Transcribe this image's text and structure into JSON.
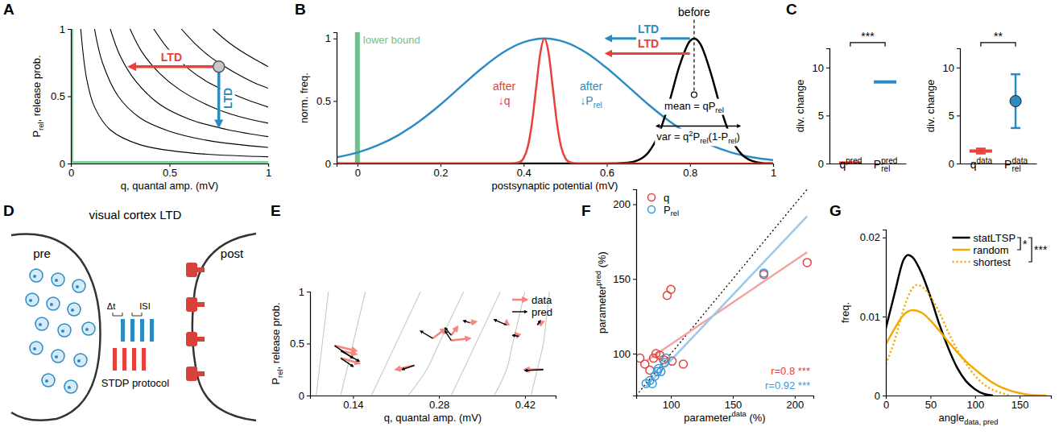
{
  "chart_data": [
    {
      "panel": "A",
      "type": "streamplot",
      "xlabel": "q, quantal amp. (mV)",
      "ylabel": [
        "P",
        {
          "sub": "rel"
        },
        ", release prob."
      ],
      "xlim": [
        0,
        1
      ],
      "ylim": [
        0,
        1
      ],
      "xticks": [
        0,
        0.5,
        1
      ],
      "yticks": [
        0,
        0.5,
        1
      ],
      "streamlines": {
        "color": "#000000",
        "lines": [
          {
            "x": [
              0.05,
              0.08,
              0.12,
              0.2,
              0.35,
              0.6,
              1
            ],
            "y": [
              1,
              0.63,
              0.42,
              0.25,
              0.14,
              0.08,
              0.05
            ]
          },
          {
            "x": [
              0.12,
              0.16,
              0.24,
              0.35,
              0.5,
              0.7,
              1
            ],
            "y": [
              1,
              0.75,
              0.5,
              0.34,
              0.24,
              0.17,
              0.12
            ]
          },
          {
            "x": [
              0.2,
              0.25,
              0.33,
              0.45,
              0.6,
              0.8,
              1
            ],
            "y": [
              1,
              0.8,
              0.61,
              0.44,
              0.33,
              0.25,
              0.2
            ]
          },
          {
            "x": [
              0.3,
              0.36,
              0.45,
              0.55,
              0.7,
              0.85,
              1
            ],
            "y": [
              1,
              0.83,
              0.67,
              0.55,
              0.43,
              0.35,
              0.3
            ]
          },
          {
            "x": [
              0.42,
              0.5,
              0.6,
              0.7,
              0.8,
              0.9,
              1
            ],
            "y": [
              1,
              0.84,
              0.7,
              0.6,
              0.53,
              0.47,
              0.42
            ]
          },
          {
            "x": [
              0.56,
              0.63,
              0.7,
              0.78,
              0.85,
              0.93,
              1
            ],
            "y": [
              1,
              0.89,
              0.8,
              0.72,
              0.66,
              0.6,
              0.56
            ]
          },
          {
            "x": [
              0.72,
              0.8,
              0.88,
              0.95,
              1
            ],
            "y": [
              1,
              0.9,
              0.82,
              0.76,
              0.72
            ]
          }
        ]
      },
      "lower_bound": {
        "x": 0,
        "y": 0,
        "color": "#7fcf9a"
      },
      "point": {
        "x": 0.75,
        "y": 0.72
      },
      "arrows": [
        {
          "label": "LTD",
          "color": "#e8413c",
          "x": [
            0.72,
            0.3
          ],
          "y": [
            0.72,
            0.72
          ]
        },
        {
          "label": "LTD",
          "color": "#2b8cc4",
          "x": [
            0.75,
            0.75
          ],
          "y": [
            0.69,
            0.28
          ]
        }
      ]
    },
    {
      "panel": "B",
      "type": "line",
      "xlabel": "postsynaptic potential (mV)",
      "ylabel": "norm. freq.",
      "xlim": [
        -0.05,
        1
      ],
      "ylim": [
        0,
        1.05
      ],
      "xticks": [
        0,
        0.2,
        0.4,
        0.6,
        0.8,
        1
      ],
      "yticks": [
        0,
        0.5,
        1
      ],
      "series": [
        {
          "name": "after",
          "note": [
            "↓P",
            {
              "sub": "rel"
            }
          ],
          "color": "#2b8cc4",
          "x": [
            -0.05,
            0,
            0.05,
            0.1,
            0.15,
            0.2,
            0.25,
            0.3,
            0.35,
            0.4,
            0.45,
            0.5,
            0.55,
            0.6,
            0.65,
            0.7,
            0.75,
            0.8,
            0.85,
            0.9,
            0.95,
            1
          ],
          "values": [
            0.05,
            0.088,
            0.147,
            0.23,
            0.34,
            0.472,
            0.619,
            0.763,
            0.887,
            0.97,
            1,
            0.97,
            0.887,
            0.763,
            0.619,
            0.472,
            0.34,
            0.23,
            0.147,
            0.088,
            0.05,
            0.027
          ]
        },
        {
          "name": "before",
          "color": "#000000",
          "x": [
            -0.05,
            0.6,
            0.65,
            0.675,
            0.7,
            0.725,
            0.75,
            0.775,
            0.8,
            0.81,
            0.825,
            0.85,
            0.875,
            0.9,
            0.925,
            0.95,
            0.975,
            1
          ],
          "values": [
            0,
            0,
            0.006,
            0.026,
            0.089,
            0.236,
            0.487,
            0.783,
            0.98,
            1,
            0.956,
            0.726,
            0.43,
            0.198,
            0.071,
            0.02,
            0.004,
            0.001
          ]
        },
        {
          "name": "after",
          "note": [
            "↓q"
          ],
          "color": "#e8413c",
          "x": [
            -0.05,
            0.37,
            0.39,
            0.4,
            0.41,
            0.42,
            0.43,
            0.44,
            0.45,
            0.46,
            0.47,
            0.48,
            0.49,
            0.5,
            0.51,
            0.53,
            1
          ],
          "values": [
            0,
            0,
            0.011,
            0.044,
            0.135,
            0.325,
            0.607,
            0.882,
            1,
            0.882,
            0.607,
            0.325,
            0.135,
            0.044,
            0.011,
            0,
            0
          ]
        }
      ],
      "lower_bound": {
        "x": 0,
        "label": "lower bound",
        "color": "#6cc48b"
      },
      "mean": {
        "x": 0.81,
        "y": 0.55,
        "label": [
          "mean = qP",
          {
            "sub": "rel"
          }
        ]
      },
      "variance": {
        "x": [
          0.72,
          0.92
        ],
        "y": 0.3,
        "label": [
          "var = q",
          {
            "sup": "2"
          },
          "P",
          {
            "sub": "rel"
          },
          "(1-P",
          {
            "sub": "rel"
          },
          ")"
        ]
      },
      "arrows": [
        {
          "label": "LTD",
          "color": "#2b8cc4",
          "x": [
            0.8,
            0.6
          ],
          "y": [
            1.0,
            1.0
          ]
        },
        {
          "label": "LTD",
          "color": "#e8413c",
          "x": [
            0.8,
            0.6
          ],
          "y": [
            0.88,
            0.88
          ]
        }
      ]
    },
    {
      "panel": "C",
      "type": "dot",
      "ylabel": "div. change",
      "categories": [
        [
          "q",
          {
            "sup": "pred"
          }
        ],
        [
          "P",
          {
            "sup": "pred"
          },
          {
            "sub": "rel"
          }
        ]
      ],
      "ylim": [
        0,
        12
      ],
      "yticks": [
        0,
        5,
        10
      ],
      "series": [
        {
          "color": "#e8413c",
          "marker": "line",
          "values": [
            0.05,
            null
          ]
        },
        {
          "color": "#2b8cc4",
          "marker": "line",
          "values": [
            null,
            8.5
          ]
        }
      ],
      "significance": {
        "label": "***",
        "y": 12.6
      }
    },
    {
      "type": "dot",
      "ylabel": "div. change",
      "categories": [
        [
          "q",
          {
            "sup": "data"
          }
        ],
        [
          "P",
          {
            "sup": "data"
          },
          {
            "sub": "rel"
          }
        ]
      ],
      "ylim": [
        0,
        12
      ],
      "yticks": [
        0,
        5,
        10
      ],
      "series": [
        {
          "color": "#e8413c",
          "marker": "line",
          "values": [
            1.3,
            null
          ],
          "errors": [
            0.25,
            null
          ]
        },
        {
          "color": "#2b8cc4",
          "marker": "circle",
          "values": [
            null,
            6.5
          ],
          "errors": [
            null,
            2.8
          ]
        }
      ],
      "significance": {
        "label": "**",
        "y": 12.6
      }
    },
    {
      "panel": "E",
      "type": "quiver",
      "xlabel": "q, quantal amp. (mV)",
      "ylabel": [
        "P",
        {
          "sub": "rel"
        },
        ", release prob."
      ],
      "xlim": [
        0.07,
        0.47
      ],
      "ylim": [
        0,
        1
      ],
      "xticks": [
        0.14,
        0.28,
        0.42
      ],
      "yticks": [
        0,
        0.5,
        1
      ],
      "legend": "top-right",
      "streamlines": {
        "color": "#c8c8c8",
        "lines": [
          {
            "x": [
              0.08,
              0.085,
              0.09,
              0.095,
              0.1
            ],
            "y": [
              0,
              0.25,
              0.5,
              0.75,
              1
            ]
          },
          {
            "x": [
              0.12,
              0.13,
              0.14,
              0.15,
              0.16
            ],
            "y": [
              0,
              0.25,
              0.5,
              0.75,
              1
            ]
          },
          {
            "x": [
              0.17,
              0.19,
              0.21,
              0.23,
              0.25
            ],
            "y": [
              0,
              0.25,
              0.5,
              0.75,
              1
            ]
          },
          {
            "x": [
              0.23,
              0.26,
              0.28,
              0.3,
              0.32
            ],
            "y": [
              0,
              0.25,
              0.5,
              0.75,
              1
            ]
          },
          {
            "x": [
              0.3,
              0.32,
              0.34,
              0.36,
              0.38
            ],
            "y": [
              0,
              0.25,
              0.5,
              0.75,
              1
            ]
          },
          {
            "x": [
              0.37,
              0.39,
              0.4,
              0.41,
              0.42
            ],
            "y": [
              0,
              0.25,
              0.5,
              0.75,
              1
            ]
          },
          {
            "x": [
              0.43,
              0.44,
              0.45,
              0.455,
              0.46
            ],
            "y": [
              0,
              0.25,
              0.5,
              0.75,
              1
            ]
          }
        ]
      },
      "series": [
        {
          "name": "data",
          "color": "#f4877f",
          "x0": [
            0.11,
            0.12,
            0.12,
            0.27,
            0.3,
            0.3,
            0.33,
            0.24,
            0.39,
            0.41,
            0.44,
            0.45
          ],
          "y0": [
            0.48,
            0.43,
            0.36,
            0.55,
            0.58,
            0.53,
            0.7,
            0.29,
            0.68,
            0.57,
            0.68,
            0.25
          ],
          "x": [
            0.145,
            0.145,
            0.15,
            0.29,
            0.31,
            0.33,
            0.34,
            0.21,
            0.39,
            0.405,
            0.45,
            0.42
          ],
          "values": [
            0.43,
            0.4,
            0.31,
            0.64,
            0.66,
            0.55,
            0.71,
            0.25,
            0.72,
            0.6,
            0.71,
            0.25
          ]
        },
        {
          "name": "pred",
          "color": "#000000",
          "x0": [
            0.11,
            0.12,
            0.12,
            0.27,
            0.3,
            0.3,
            0.33,
            0.24,
            0.39,
            0.41,
            0.44,
            0.45
          ],
          "y0": [
            0.48,
            0.43,
            0.36,
            0.55,
            0.58,
            0.53,
            0.7,
            0.29,
            0.68,
            0.57,
            0.68,
            0.25
          ],
          "x": [
            0.14,
            0.15,
            0.14,
            0.25,
            0.29,
            0.29,
            0.32,
            0.22,
            0.37,
            0.4,
            0.445,
            0.42
          ],
          "values": [
            0.36,
            0.33,
            0.28,
            0.62,
            0.65,
            0.62,
            0.72,
            0.25,
            0.73,
            0.58,
            0.72,
            0.24
          ]
        }
      ]
    },
    {
      "panel": "F",
      "type": "scatter",
      "xlabel": [
        "parameter",
        {
          "sup": "data"
        },
        " (%)"
      ],
      "ylabel": [
        "parameter",
        {
          "sup": "pred"
        },
        " (%)"
      ],
      "xlim": [
        72,
        215
      ],
      "ylim": [
        72,
        210
      ],
      "xticks": [
        100,
        150,
        200
      ],
      "yticks": [
        100,
        150,
        200
      ],
      "legend": "top-left",
      "identity": {
        "x": [
          72,
          210
        ],
        "y": [
          72,
          210
        ],
        "line_style": "dotted"
      },
      "series": [
        {
          "name": "q",
          "color": "#e8413c",
          "marker": "circle",
          "x": [
            75,
            79,
            83,
            86,
            88,
            91,
            94,
            97,
            100,
            101,
            110,
            175,
            210
          ],
          "values": [
            97,
            93,
            89,
            97,
            100,
            99,
            96,
            139,
            143,
            95,
            93,
            153,
            161
          ],
          "fit": {
            "x": [
              80,
              210
            ],
            "values": [
              95,
              168
            ],
            "color": "#f4a3a0"
          },
          "annotation": "r=0.8 ***"
        },
        {
          "name": [
            "P",
            {
              "sub": "rel"
            }
          ],
          "color": "#3a9ad9",
          "marker": "circle",
          "x": [
            80,
            83,
            85,
            87,
            89,
            90,
            92,
            95,
            96,
            175
          ],
          "values": [
            80,
            82,
            80,
            85,
            88,
            90,
            88,
            94,
            97,
            154
          ],
          "fit": {
            "x": [
              80,
              210
            ],
            "values": [
              78,
              192
            ],
            "color": "#9cc9e8"
          },
          "annotation": "r=0.92 ***"
        }
      ]
    },
    {
      "panel": "G",
      "type": "line",
      "xlabel": [
        "angle",
        {
          "sub": "data, pred"
        }
      ],
      "ylabel": "freq.",
      "xlim": [
        0,
        185
      ],
      "ylim": [
        0,
        0.021
      ],
      "xticks": [
        0,
        50,
        100,
        150
      ],
      "yticks": [
        0,
        0.01,
        0.02
      ],
      "legend": "top-right",
      "series": [
        {
          "name": "statLTSP",
          "color": "#000000",
          "line_style": "solid",
          "x": [
            0,
            10,
            20,
            25,
            30,
            40,
            50,
            60,
            70,
            80,
            90,
            100,
            110,
            120
          ],
          "values": [
            0.0085,
            0.013,
            0.0172,
            0.0178,
            0.0175,
            0.0155,
            0.0125,
            0.009,
            0.006,
            0.0035,
            0.0018,
            0.0008,
            0.0002,
            0
          ]
        },
        {
          "name": "random",
          "color": "#f2a900",
          "line_style": "solid",
          "x": [
            0,
            10,
            20,
            30,
            40,
            50,
            60,
            70,
            80,
            90,
            100,
            110,
            120,
            130,
            140,
            150,
            160,
            180
          ],
          "values": [
            0.0065,
            0.0085,
            0.0102,
            0.0108,
            0.0105,
            0.0095,
            0.0082,
            0.0068,
            0.0055,
            0.0043,
            0.0033,
            0.0024,
            0.0016,
            0.001,
            0.0006,
            0.0003,
            0.0001,
            0
          ]
        },
        {
          "name": "shortest",
          "color": "#f2a900",
          "line_style": "dotted",
          "x": [
            0,
            10,
            20,
            30,
            35,
            40,
            50,
            60,
            70,
            80,
            90,
            100,
            110,
            120,
            130,
            140
          ],
          "values": [
            0.004,
            0.007,
            0.011,
            0.0136,
            0.014,
            0.0138,
            0.0125,
            0.0105,
            0.008,
            0.0058,
            0.004,
            0.0025,
            0.0014,
            0.0007,
            0.0003,
            0
          ]
        }
      ],
      "significance": [
        {
          "label": "*",
          "rows": [
            0,
            1
          ]
        },
        {
          "label": "***",
          "rows": [
            0,
            2
          ]
        }
      ]
    }
  ],
  "diagram": {
    "panel": "D",
    "title": "visual cortex LTD",
    "labels": {
      "pre": "pre",
      "post": "post",
      "protocol": "STDP protocol",
      "delay": "Δt",
      "interval": "ISI"
    }
  }
}
